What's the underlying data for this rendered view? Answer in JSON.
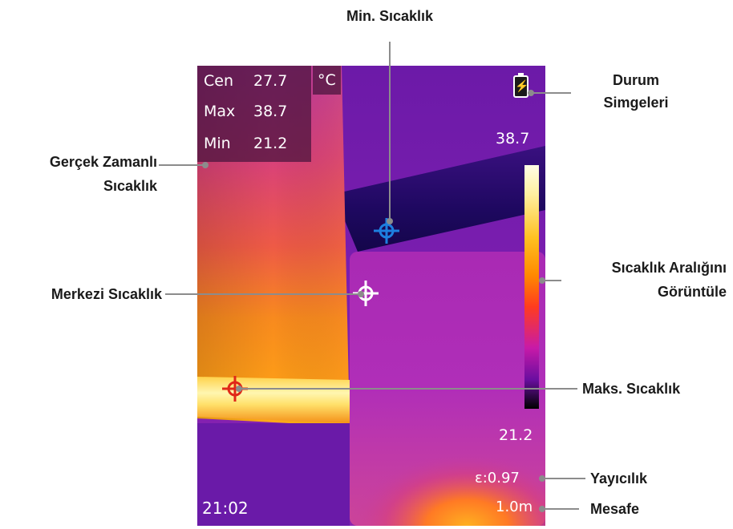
{
  "screen": {
    "readout": {
      "center_label": "Cen",
      "center_value": "27.7",
      "max_label": "Max",
      "max_value": "38.7",
      "min_label": "Min",
      "min_value": "21.2",
      "unit": "°C"
    },
    "palette_max": "38.7",
    "palette_min": "21.2",
    "emissivity": "ε:0.97",
    "distance": "1.0m",
    "time": "21:02",
    "battery_icon": "battery-charging-icon",
    "cursor_colors": {
      "min": "#1d7fe0",
      "center": "#ffffff",
      "max": "#e02818"
    }
  },
  "callouts": {
    "min_temp": "Min. Sıcaklık",
    "status_icons_line1": "Durum",
    "status_icons_line2": "Simgeleri",
    "realtime_temp_line1": "Gerçek Zamanlı",
    "realtime_temp_line2": "Sıcaklık",
    "display_range_line1": "Sıcaklık Aralığını",
    "display_range_line2": "Görüntüle",
    "center_temp": "Merkezi Sıcaklık",
    "max_temp": "Maks. Sıcaklık",
    "emissivity": "Yayıcılık",
    "distance": "Mesafe"
  }
}
